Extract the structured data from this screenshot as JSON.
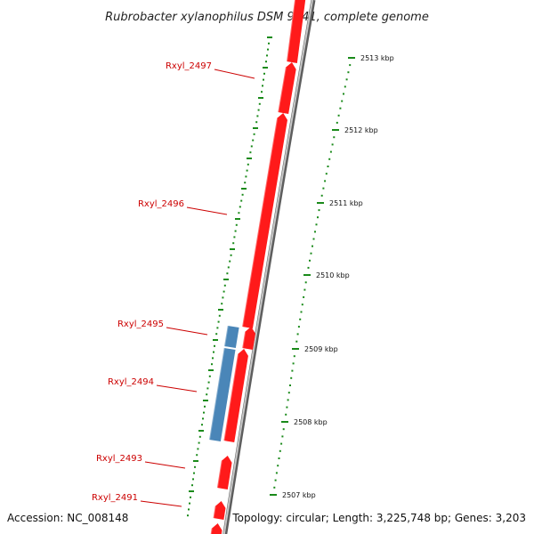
{
  "title": "Rubrobacter xylanophilus DSM 9941, complete genome",
  "footer": {
    "accession": "Accession: NC_008148",
    "topology": "Topology: circular; Length: 3,225,748 bp; Genes: 3,203"
  },
  "colors": {
    "forward_gene": "#ff1a1a",
    "reverse_gene": "#4a86b8",
    "backbone": "#888888",
    "tick": "#1a8a1a",
    "label": "#cc0000"
  },
  "scale_ticks": [
    {
      "label": "2513 kbp",
      "kbp": 2513
    },
    {
      "label": "2512 kbp",
      "kbp": 2512
    },
    {
      "label": "2511 kbp",
      "kbp": 2511
    },
    {
      "label": "2510 kbp",
      "kbp": 2510
    },
    {
      "label": "2509 kbp",
      "kbp": 2509
    },
    {
      "label": "2508 kbp",
      "kbp": 2508
    },
    {
      "label": "2507 kbp",
      "kbp": 2507
    }
  ],
  "genes": [
    {
      "id": "Rxyl_2497",
      "label": "Rxyl_2497",
      "strand": "forward"
    },
    {
      "id": "Rxyl_2496",
      "label": "Rxyl_2496",
      "strand": "forward"
    },
    {
      "id": "Rxyl_2495",
      "label": "Rxyl_2495",
      "strand": "reverse"
    },
    {
      "id": "Rxyl_2494",
      "label": "Rxyl_2494",
      "strand": "reverse"
    },
    {
      "id": "Rxyl_2493",
      "label": "Rxyl_2493",
      "strand": "forward"
    },
    {
      "id": "Rxyl_2491",
      "label": "Rxyl_2491",
      "strand": "forward"
    }
  ]
}
